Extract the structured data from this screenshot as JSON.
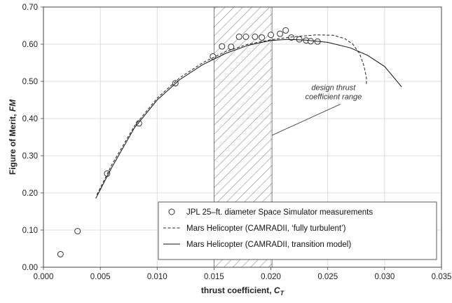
{
  "chart_data": {
    "type": "scatter",
    "title": "",
    "xlabel": "thrust coefficient, ",
    "xlabel_symbol": "C",
    "xlabel_sub": "T",
    "ylabel": "Figure of Merit, ",
    "ylabel_symbol": "FM",
    "xlim": [
      0.0,
      0.035
    ],
    "ylim": [
      0.0,
      0.7
    ],
    "xticks": [
      "0.000",
      "0.005",
      "0.010",
      "0.015",
      "0.020",
      "0.025",
      "0.030",
      "0.035"
    ],
    "yticks": [
      "0.00",
      "0.10",
      "0.20",
      "0.30",
      "0.40",
      "0.50",
      "0.60",
      "0.70"
    ],
    "grid": true,
    "legend_position": "bottom-right",
    "shaded_region": {
      "x_range": [
        0.015,
        0.0201
      ],
      "pattern": "hatched",
      "annotation": [
        "design thrust",
        "coefficient range"
      ],
      "annotation_at": [
        0.0255,
        0.45
      ],
      "pointer_to": [
        0.0201,
        0.355
      ]
    },
    "series": [
      {
        "name": "JPL 25–ft. diameter Space Simulator measurements",
        "style": "open-circle",
        "color": "#333333",
        "points": [
          [
            0.0015,
            0.035
          ],
          [
            0.003,
            0.097
          ],
          [
            0.0056,
            0.252
          ],
          [
            0.0084,
            0.387
          ],
          [
            0.0116,
            0.495
          ],
          [
            0.0149,
            0.567
          ],
          [
            0.0157,
            0.594
          ],
          [
            0.0165,
            0.593
          ],
          [
            0.0172,
            0.62
          ],
          [
            0.0178,
            0.62
          ],
          [
            0.0186,
            0.62
          ],
          [
            0.0192,
            0.618
          ],
          [
            0.02,
            0.625
          ],
          [
            0.0208,
            0.628
          ],
          [
            0.0213,
            0.637
          ],
          [
            0.0218,
            0.618
          ],
          [
            0.0225,
            0.613
          ],
          [
            0.0231,
            0.61
          ],
          [
            0.0235,
            0.608
          ],
          [
            0.0241,
            0.607
          ]
        ]
      },
      {
        "name": "Mars Helicopter (CAMRADII, ‘fully turbulent’)",
        "style": "dashed",
        "color": "#222222",
        "points": [
          [
            0.0047,
            0.195
          ],
          [
            0.006,
            0.275
          ],
          [
            0.008,
            0.38
          ],
          [
            0.01,
            0.455
          ],
          [
            0.012,
            0.51
          ],
          [
            0.014,
            0.55
          ],
          [
            0.016,
            0.58
          ],
          [
            0.018,
            0.6
          ],
          [
            0.02,
            0.612
          ],
          [
            0.022,
            0.62
          ],
          [
            0.024,
            0.625
          ],
          [
            0.0255,
            0.624
          ],
          [
            0.0265,
            0.615
          ],
          [
            0.0272,
            0.6
          ],
          [
            0.0278,
            0.575
          ],
          [
            0.0282,
            0.54
          ],
          [
            0.0284,
            0.51
          ],
          [
            0.0284,
            0.49
          ]
        ]
      },
      {
        "name": "Mars Helicopter (CAMRADII, transition model)",
        "style": "solid",
        "color": "#111111",
        "points": [
          [
            0.0046,
            0.185
          ],
          [
            0.006,
            0.268
          ],
          [
            0.008,
            0.375
          ],
          [
            0.01,
            0.45
          ],
          [
            0.012,
            0.505
          ],
          [
            0.014,
            0.545
          ],
          [
            0.016,
            0.575
          ],
          [
            0.018,
            0.597
          ],
          [
            0.02,
            0.61
          ],
          [
            0.0215,
            0.613
          ],
          [
            0.023,
            0.611
          ],
          [
            0.025,
            0.605
          ],
          [
            0.027,
            0.59
          ],
          [
            0.0285,
            0.57
          ],
          [
            0.03,
            0.54
          ],
          [
            0.0315,
            0.485
          ]
        ]
      }
    ]
  }
}
